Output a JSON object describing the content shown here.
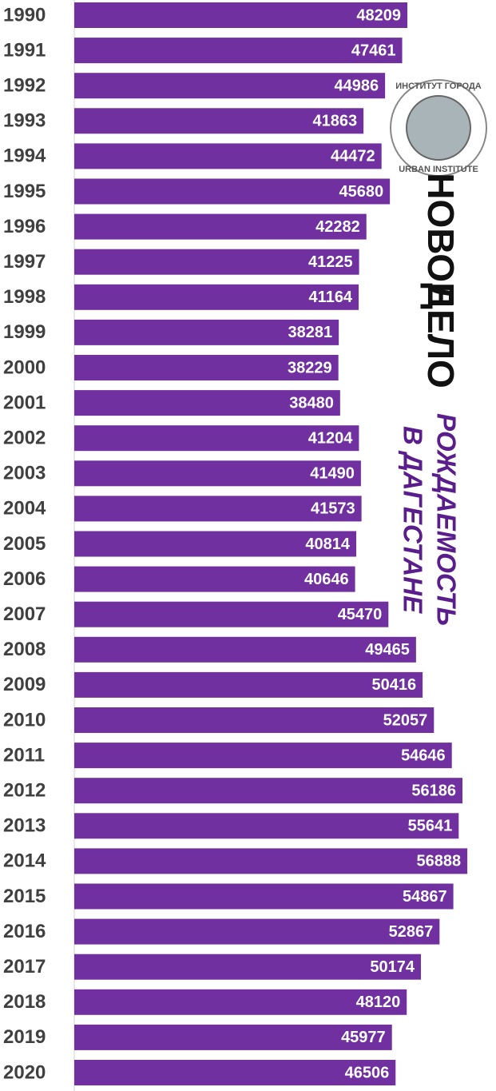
{
  "chart_data": {
    "type": "hbar",
    "title": [
      "РОЖДАЕМОСТЬ",
      "В ДАГЕСТАНЕ"
    ],
    "annotations": [
      "НОВОЕ",
      "ДЕЛО",
      "ИНСТИТУТ ГОРОДА",
      "URBAN INSTITUTE"
    ],
    "color": "#7030a0",
    "categories": [
      "1990",
      "1991",
      "1992",
      "1993",
      "1994",
      "1995",
      "1996",
      "1997",
      "1998",
      "1999",
      "2000",
      "2001",
      "2002",
      "2003",
      "2004",
      "2005",
      "2006",
      "2007",
      "2008",
      "2009",
      "2010",
      "2011",
      "2012",
      "2013",
      "2014",
      "2015",
      "2016",
      "2017",
      "2018",
      "2019",
      "2020"
    ],
    "values": [
      48209,
      47461,
      44986,
      41863,
      44472,
      45680,
      42282,
      41225,
      41164,
      38281,
      38229,
      38480,
      41204,
      41490,
      41573,
      40814,
      40646,
      45470,
      49465,
      50416,
      52057,
      54646,
      56186,
      55641,
      56888,
      54867,
      52867,
      50174,
      48120,
      45977,
      46506
    ]
  }
}
